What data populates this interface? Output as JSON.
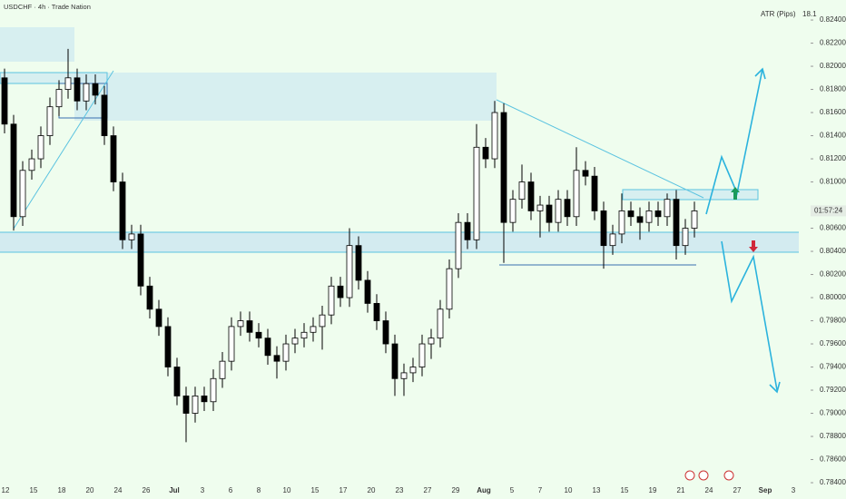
{
  "chart_data": {
    "type": "candlestick",
    "title": "USDCHF · 4h · Trade Nation",
    "indicator": {
      "name": "ATR (Pips)",
      "value": 18.1
    },
    "countdown": "01:57:24",
    "ylim": [
      0.78259,
      0.82573
    ],
    "yticks": [
      {
        "value": 0.824,
        "label": "0.82400"
      },
      {
        "value": 0.822,
        "label": "0.82200"
      },
      {
        "value": 0.82,
        "label": "0.82000"
      },
      {
        "value": 0.818,
        "label": "0.81800"
      },
      {
        "value": 0.816,
        "label": "0.81600"
      },
      {
        "value": 0.814,
        "label": "0.81400"
      },
      {
        "value": 0.812,
        "label": "0.81200"
      },
      {
        "value": 0.81,
        "label": "0.81000"
      },
      {
        "value": 0.806,
        "label": "0.80600"
      },
      {
        "value": 0.804,
        "label": "0.80400"
      },
      {
        "value": 0.802,
        "label": "0.80200"
      },
      {
        "value": 0.8,
        "label": "0.80000"
      },
      {
        "value": 0.798,
        "label": "0.79800"
      },
      {
        "value": 0.796,
        "label": "0.79600"
      },
      {
        "value": 0.794,
        "label": "0.79400"
      },
      {
        "value": 0.792,
        "label": "0.79200"
      },
      {
        "value": 0.79,
        "label": "0.79000"
      },
      {
        "value": 0.788,
        "label": "0.78800"
      },
      {
        "value": 0.786,
        "label": "0.78600"
      },
      {
        "value": 0.784,
        "label": "0.78400"
      }
    ],
    "categories": [
      "12",
      "15",
      "18",
      "20",
      "24",
      "26",
      "Jul",
      "3",
      "6",
      "8",
      "10",
      "15",
      "17",
      "20",
      "23",
      "27",
      "29",
      "Aug",
      "5",
      "7",
      "10",
      "13",
      "15",
      "19",
      "21",
      "24",
      "27",
      "Sep",
      "3"
    ],
    "ohlc": [
      [
        0.819,
        0.8198,
        0.8142,
        0.815
      ],
      [
        0.815,
        0.8158,
        0.8058,
        0.807
      ],
      [
        0.807,
        0.8118,
        0.8062,
        0.811
      ],
      [
        0.811,
        0.8128,
        0.8102,
        0.812
      ],
      [
        0.812,
        0.8148,
        0.8112,
        0.814
      ],
      [
        0.814,
        0.8173,
        0.8132,
        0.8165
      ],
      [
        0.8165,
        0.8188,
        0.8157,
        0.818
      ],
      [
        0.818,
        0.8215,
        0.8172,
        0.819
      ],
      [
        0.819,
        0.8198,
        0.8162,
        0.817
      ],
      [
        0.817,
        0.8193,
        0.8162,
        0.8185
      ],
      [
        0.8185,
        0.8193,
        0.8167,
        0.8175
      ],
      [
        0.8175,
        0.8183,
        0.8132,
        0.814
      ],
      [
        0.814,
        0.8148,
        0.8092,
        0.81
      ],
      [
        0.81,
        0.8108,
        0.8042,
        0.805
      ],
      [
        0.805,
        0.8063,
        0.8042,
        0.8055
      ],
      [
        0.8055,
        0.8063,
        0.8002,
        0.801
      ],
      [
        0.801,
        0.8018,
        0.7982,
        0.799
      ],
      [
        0.799,
        0.7998,
        0.7967,
        0.7975
      ],
      [
        0.7975,
        0.7983,
        0.7932,
        0.794
      ],
      [
        0.794,
        0.7948,
        0.7907,
        0.7915
      ],
      [
        0.7915,
        0.7923,
        0.7875,
        0.79
      ],
      [
        0.79,
        0.7923,
        0.7892,
        0.7915
      ],
      [
        0.7915,
        0.7923,
        0.7902,
        0.791
      ],
      [
        0.791,
        0.7938,
        0.7902,
        0.793
      ],
      [
        0.793,
        0.7953,
        0.7922,
        0.7945
      ],
      [
        0.7945,
        0.7983,
        0.7937,
        0.7975
      ],
      [
        0.7975,
        0.7988,
        0.7967,
        0.798
      ],
      [
        0.798,
        0.7988,
        0.7962,
        0.797
      ],
      [
        0.797,
        0.7978,
        0.7957,
        0.7965
      ],
      [
        0.7965,
        0.7973,
        0.7942,
        0.795
      ],
      [
        0.795,
        0.7958,
        0.793,
        0.7945
      ],
      [
        0.7945,
        0.7968,
        0.7937,
        0.796
      ],
      [
        0.796,
        0.7973,
        0.7952,
        0.7965
      ],
      [
        0.7965,
        0.7978,
        0.7957,
        0.797
      ],
      [
        0.797,
        0.7983,
        0.7962,
        0.7975
      ],
      [
        0.7975,
        0.7993,
        0.7955,
        0.7985
      ],
      [
        0.7985,
        0.8018,
        0.7977,
        0.801
      ],
      [
        0.801,
        0.8018,
        0.7992,
        0.8
      ],
      [
        0.8,
        0.806,
        0.7992,
        0.8045
      ],
      [
        0.8045,
        0.8053,
        0.8007,
        0.8015
      ],
      [
        0.8015,
        0.8023,
        0.7987,
        0.7995
      ],
      [
        0.7995,
        0.8003,
        0.7972,
        0.798
      ],
      [
        0.798,
        0.7988,
        0.7952,
        0.796
      ],
      [
        0.796,
        0.7968,
        0.7915,
        0.793
      ],
      [
        0.793,
        0.7943,
        0.7915,
        0.7935
      ],
      [
        0.7935,
        0.7948,
        0.7927,
        0.794
      ],
      [
        0.794,
        0.7968,
        0.7932,
        0.796
      ],
      [
        0.796,
        0.7973,
        0.7947,
        0.7965
      ],
      [
        0.7965,
        0.7998,
        0.7957,
        0.799
      ],
      [
        0.799,
        0.8033,
        0.7982,
        0.8025
      ],
      [
        0.8025,
        0.8073,
        0.8017,
        0.8065
      ],
      [
        0.8065,
        0.8073,
        0.8042,
        0.805
      ],
      [
        0.805,
        0.815,
        0.8042,
        0.813
      ],
      [
        0.813,
        0.8138,
        0.8112,
        0.812
      ],
      [
        0.812,
        0.817,
        0.8112,
        0.816
      ],
      [
        0.816,
        0.8168,
        0.803,
        0.8065
      ],
      [
        0.8065,
        0.8093,
        0.8057,
        0.8085
      ],
      [
        0.8085,
        0.8115,
        0.8077,
        0.81
      ],
      [
        0.81,
        0.8108,
        0.8067,
        0.8075
      ],
      [
        0.8075,
        0.8088,
        0.8052,
        0.808
      ],
      [
        0.808,
        0.8088,
        0.8057,
        0.8065
      ],
      [
        0.8065,
        0.8093,
        0.8057,
        0.8085
      ],
      [
        0.8085,
        0.8093,
        0.8062,
        0.807
      ],
      [
        0.807,
        0.813,
        0.8062,
        0.811
      ],
      [
        0.811,
        0.8118,
        0.8097,
        0.8105
      ],
      [
        0.8105,
        0.8113,
        0.8067,
        0.8075
      ],
      [
        0.8075,
        0.8083,
        0.8025,
        0.8045
      ],
      [
        0.8045,
        0.8063,
        0.8037,
        0.8055
      ],
      [
        0.8055,
        0.809,
        0.8047,
        0.8075
      ],
      [
        0.8075,
        0.8083,
        0.8062,
        0.807
      ],
      [
        0.807,
        0.8078,
        0.805,
        0.8065
      ],
      [
        0.8065,
        0.8083,
        0.8057,
        0.8075
      ],
      [
        0.8075,
        0.8083,
        0.8062,
        0.807
      ],
      [
        0.807,
        0.809,
        0.8062,
        0.8085
      ],
      [
        0.8085,
        0.8093,
        0.8033,
        0.8045
      ],
      [
        0.8045,
        0.8068,
        0.8037,
        0.806
      ],
      [
        0.806,
        0.8083,
        0.8052,
        0.8075
      ]
    ],
    "up_color": "#ffffff",
    "down_color": "#000000",
    "wick_color": "#000000"
  }
}
